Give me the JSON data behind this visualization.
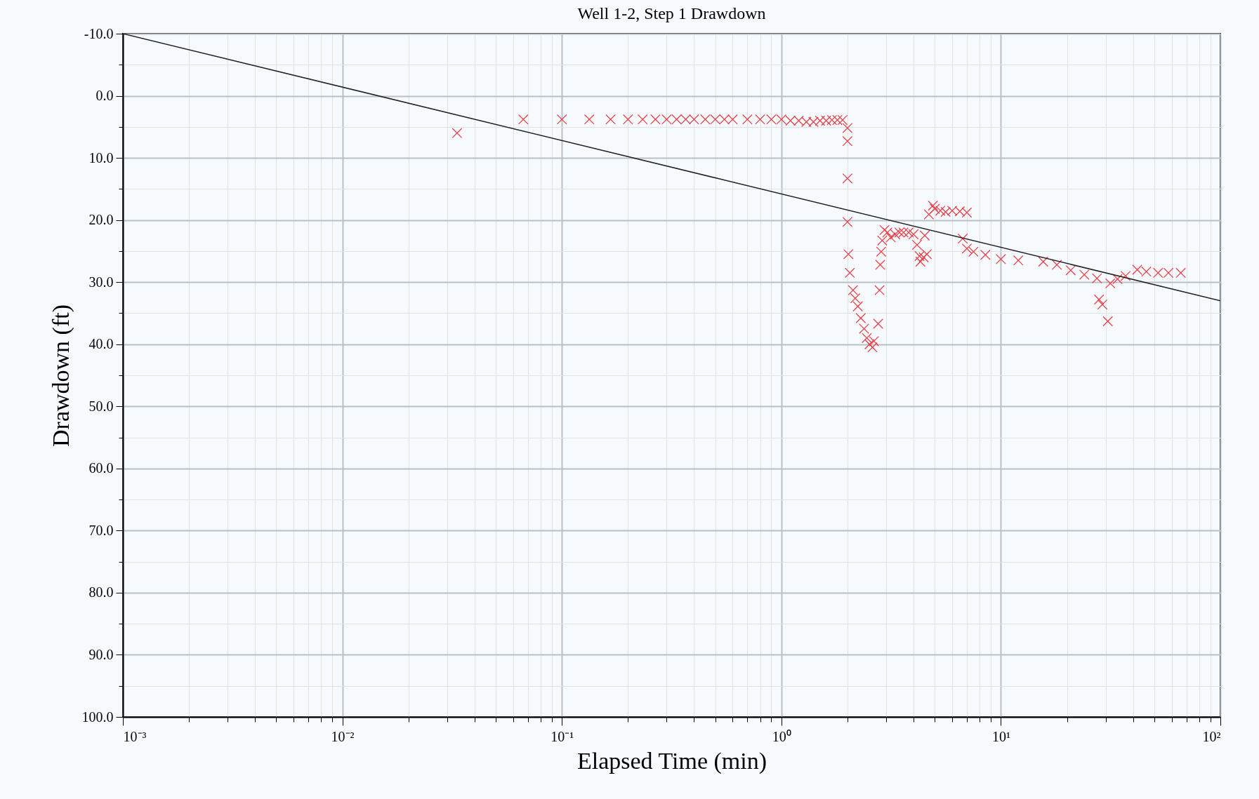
{
  "chart_data": {
    "type": "scatter",
    "title": "Well 1-2, Step 1 Drawdown",
    "xlabel": "Elapsed Time (min)",
    "ylabel": "Drawdown (ft)",
    "log": "x",
    "grid": true,
    "xlim": [
      0.001,
      100
    ],
    "ylim": [
      100,
      -10
    ],
    "xticks": [
      {
        "value": 0.001,
        "label": "10⁻³"
      },
      {
        "value": 0.002,
        "label": null
      },
      {
        "value": 0.003,
        "label": null
      },
      {
        "value": 0.004,
        "label": null
      },
      {
        "value": 0.005,
        "label": null
      },
      {
        "value": 0.006,
        "label": null
      },
      {
        "value": 0.007,
        "label": null
      },
      {
        "value": 0.008,
        "label": null
      },
      {
        "value": 0.009,
        "label": null
      },
      {
        "value": 0.01,
        "label": "10⁻²"
      },
      {
        "value": 0.02,
        "label": null
      },
      {
        "value": 0.03,
        "label": null
      },
      {
        "value": 0.04,
        "label": null
      },
      {
        "value": 0.05,
        "label": null
      },
      {
        "value": 0.06,
        "label": null
      },
      {
        "value": 0.07,
        "label": null
      },
      {
        "value": 0.08,
        "label": null
      },
      {
        "value": 0.09,
        "label": null
      },
      {
        "value": 0.1,
        "label": "10⁻¹"
      },
      {
        "value": 0.2,
        "label": null
      },
      {
        "value": 0.3,
        "label": null
      },
      {
        "value": 0.4,
        "label": null
      },
      {
        "value": 0.5,
        "label": null
      },
      {
        "value": 0.6,
        "label": null
      },
      {
        "value": 0.7,
        "label": null
      },
      {
        "value": 0.8,
        "label": null
      },
      {
        "value": 0.9,
        "label": null
      },
      {
        "value": 1,
        "label": "10⁰"
      },
      {
        "value": 2,
        "label": null
      },
      {
        "value": 3,
        "label": null
      },
      {
        "value": 4,
        "label": null
      },
      {
        "value": 5,
        "label": null
      },
      {
        "value": 6,
        "label": null
      },
      {
        "value": 7,
        "label": null
      },
      {
        "value": 8,
        "label": null
      },
      {
        "value": 9,
        "label": null
      },
      {
        "value": 10,
        "label": "10¹"
      },
      {
        "value": 20,
        "label": null
      },
      {
        "value": 30,
        "label": null
      },
      {
        "value": 40,
        "label": null
      },
      {
        "value": 50,
        "label": null
      },
      {
        "value": 60,
        "label": null
      },
      {
        "value": 70,
        "label": null
      },
      {
        "value": 80,
        "label": null
      },
      {
        "value": 90,
        "label": null
      },
      {
        "value": 100,
        "label": "10²"
      }
    ],
    "yticks": [
      {
        "value": -10,
        "label": "-10.0"
      },
      {
        "value": -5,
        "label": null
      },
      {
        "value": 0,
        "label": "0.0"
      },
      {
        "value": 5,
        "label": null
      },
      {
        "value": 10,
        "label": "10.0"
      },
      {
        "value": 15,
        "label": null
      },
      {
        "value": 20,
        "label": "20.0"
      },
      {
        "value": 25,
        "label": null
      },
      {
        "value": 30,
        "label": "30.0"
      },
      {
        "value": 35,
        "label": null
      },
      {
        "value": 40,
        "label": "40.0"
      },
      {
        "value": 45,
        "label": null
      },
      {
        "value": 50,
        "label": "50.0"
      },
      {
        "value": 55,
        "label": null
      },
      {
        "value": 60,
        "label": "60.0"
      },
      {
        "value": 65,
        "label": null
      },
      {
        "value": 70,
        "label": "70.0"
      },
      {
        "value": 75,
        "label": null
      },
      {
        "value": 80,
        "label": "80.0"
      },
      {
        "value": 85,
        "label": null
      },
      {
        "value": 90,
        "label": "90.0"
      },
      {
        "value": 95,
        "label": null
      },
      {
        "value": 100,
        "label": "100.0"
      }
    ],
    "series": [
      {
        "marker": "cross",
        "color": "#e8424a",
        "x": [
          0.0333,
          0.0667,
          0.1,
          0.1333,
          0.1667,
          0.2,
          0.2333,
          0.2667,
          0.3,
          0.3333,
          0.3667,
          0.4,
          0.45,
          0.5,
          0.55,
          0.6,
          0.7,
          0.8,
          0.9,
          1.0,
          1.1,
          1.2,
          1.3,
          1.4,
          1.5,
          1.6,
          1.7,
          1.8,
          1.9,
          2.0,
          2.0,
          2.0,
          2.0,
          2.02,
          2.05,
          2.12,
          2.17,
          2.23,
          2.3,
          2.38,
          2.45,
          2.52,
          2.6,
          2.64,
          2.76,
          2.8,
          2.82,
          2.85,
          2.88,
          2.95,
          3.04,
          3.15,
          3.3,
          3.45,
          3.6,
          3.8,
          4.0,
          4.15,
          4.26,
          4.3,
          4.45,
          4.6,
          4.5,
          4.7,
          4.9,
          5.0,
          5.3,
          5.6,
          6.0,
          6.5,
          7.0,
          6.7,
          7.0,
          7.5,
          8.5,
          10,
          12,
          15.6,
          18,
          20.8,
          24,
          27.4,
          28,
          29,
          30.7,
          31.5,
          34,
          37,
          41.8,
          46,
          52,
          58,
          66
        ],
        "values": [
          6.0,
          3.8,
          3.8,
          3.8,
          3.8,
          3.8,
          3.8,
          3.8,
          3.8,
          3.8,
          3.8,
          3.8,
          3.8,
          3.8,
          3.8,
          3.8,
          3.8,
          3.8,
          3.8,
          3.8,
          4.0,
          4.0,
          4.2,
          4.2,
          4.0,
          4.0,
          3.9,
          3.9,
          3.9,
          5.2,
          7.3,
          13.3,
          20.3,
          25.5,
          28.5,
          31.3,
          32.6,
          33.9,
          35.8,
          37.5,
          39,
          40,
          40.5,
          39.5,
          36.7,
          31.3,
          27.2,
          25.1,
          23.3,
          21.6,
          22.0,
          22.8,
          22.3,
          22.0,
          22.0,
          22.0,
          22.3,
          24,
          25.8,
          26.7,
          26.0,
          25.5,
          22.5,
          19.1,
          17.7,
          18.2,
          18.5,
          18.7,
          18.5,
          18.6,
          18.8,
          23,
          24.6,
          25.1,
          25.6,
          26.3,
          26.5,
          26.7,
          27.2,
          28.1,
          28.8,
          29.4,
          32.8,
          33.6,
          36.3,
          30.2,
          29.5,
          29,
          28,
          28.3,
          28.5,
          28.5,
          28.5
        ]
      },
      {
        "type": "line",
        "marker": "none",
        "color": "#222222",
        "x": [
          0.001,
          100
        ],
        "values": [
          -10,
          33
        ]
      }
    ]
  }
}
